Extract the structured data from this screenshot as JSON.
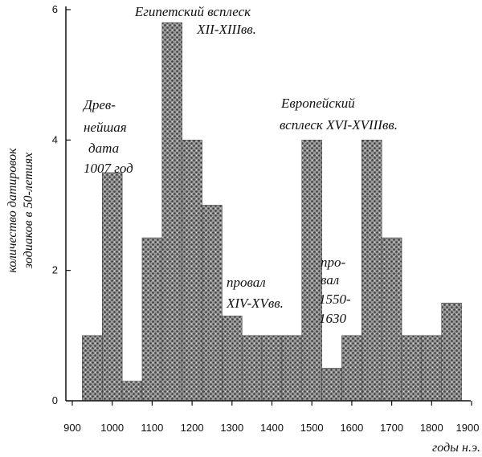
{
  "chart_data": {
    "type": "bar",
    "x_bins_start": [
      925,
      975,
      1025,
      1075,
      1125,
      1175,
      1225,
      1275,
      1325,
      1375,
      1425,
      1475,
      1525,
      1575,
      1625,
      1675,
      1725,
      1775,
      1825
    ],
    "bin_width": 50,
    "values": [
      1,
      3.5,
      0.3,
      2.5,
      5.8,
      4,
      3,
      1.3,
      1,
      1,
      1,
      4,
      0.5,
      1,
      4,
      2.5,
      1,
      1,
      1.5
    ],
    "xlabel": "годы н.э.",
    "ylabel_lines": [
      "количество датировок",
      "зодиаков в 50-летиях"
    ],
    "xlim": [
      880,
      1920
    ],
    "ylim": [
      0,
      6
    ],
    "x_ticks": [
      "900",
      "1000",
      "1100",
      "1200",
      "1300",
      "1400",
      "1500",
      "1600",
      "1700",
      "1800",
      "1900"
    ],
    "y_ticks": [
      "0",
      "2",
      "4",
      "6"
    ],
    "grid": false,
    "bar_color": "#8c8c8c"
  },
  "annotations": {
    "egypt": [
      "Египетский всплеск",
      "XII-XIIIвв."
    ],
    "ancient": [
      "Древ-",
      "нейшая",
      "дата",
      "1007 год"
    ],
    "europe": [
      "Европейский",
      "всплеск  XVI-XVIIIвв."
    ],
    "proval": [
      "провал",
      "XIV-XVвв."
    ],
    "proval2": [
      "про-",
      "вал",
      "1550-",
      "1630"
    ]
  }
}
